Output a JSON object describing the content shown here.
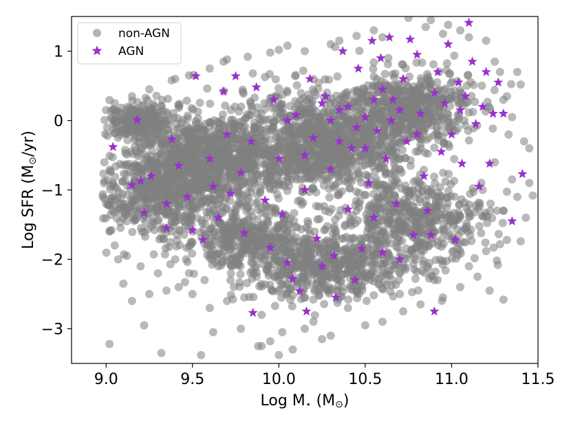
{
  "chart_data": {
    "type": "scatter",
    "title": "",
    "xlabel": {
      "main": "Log M",
      "sub": "⋆",
      "unit": "(M",
      "sun": "⊙",
      "close": ")"
    },
    "ylabel": {
      "main": "Log SFR  (M",
      "sun": "⊙",
      "unit": "/yr)"
    },
    "xlim": [
      8.8,
      11.5
    ],
    "ylim": [
      -3.5,
      1.5
    ],
    "xticks": [
      9.0,
      9.5,
      10.0,
      10.5,
      11.0,
      11.5
    ],
    "xtick_labels": [
      "9.0",
      "9.5",
      "10.0",
      "10.5",
      "11.0",
      "11.5"
    ],
    "yticks": [
      1,
      0,
      -1,
      -2,
      -3
    ],
    "ytick_labels": [
      "1",
      "0",
      "−1",
      "−2",
      "−3"
    ],
    "grid": false,
    "legend": {
      "position": "top-left"
    },
    "colors": {
      "non_agn": "#808080",
      "agn": "#9932cc"
    },
    "series": [
      {
        "name": "non-AGN",
        "marker": "circle",
        "description": "dense grey cloud of galaxies; sampled outline points",
        "points": [
          [
            9.02,
            -3.22
          ],
          [
            9.1,
            -2.35
          ],
          [
            9.22,
            -2.95
          ],
          [
            9.32,
            -3.35
          ],
          [
            9.42,
            -2.4
          ],
          [
            9.55,
            -3.38
          ],
          [
            9.62,
            -3.05
          ],
          [
            9.78,
            -3.0
          ],
          [
            9.88,
            -3.25
          ],
          [
            9.95,
            -3.18
          ],
          [
            10.02,
            -3.05
          ],
          [
            10.15,
            -3.0
          ],
          [
            10.3,
            -3.1
          ],
          [
            10.5,
            -2.95
          ],
          [
            10.6,
            -2.9
          ],
          [
            10.72,
            -2.75
          ],
          [
            10.82,
            -2.65
          ],
          [
            10.95,
            -2.55
          ],
          [
            11.05,
            -2.4
          ],
          [
            11.15,
            -2.25
          ],
          [
            11.22,
            -2.45
          ],
          [
            11.3,
            -2.58
          ],
          [
            11.2,
            -1.88
          ],
          [
            11.32,
            -1.72
          ],
          [
            11.4,
            -1.74
          ],
          [
            11.43,
            -1.4
          ],
          [
            11.38,
            -1.1
          ],
          [
            11.45,
            -0.4
          ],
          [
            11.42,
            -0.3
          ],
          [
            11.35,
            0.05
          ],
          [
            11.32,
            0.35
          ],
          [
            11.28,
            0.7
          ],
          [
            11.4,
            0.52
          ],
          [
            11.38,
            0.7
          ],
          [
            11.2,
            1.15
          ],
          [
            11.05,
            1.3
          ],
          [
            10.98,
            1.38
          ],
          [
            10.88,
            1.45
          ],
          [
            10.75,
            1.48
          ],
          [
            10.55,
            1.3
          ],
          [
            10.35,
            1.15
          ],
          [
            10.15,
            1.0
          ],
          [
            9.95,
            0.98
          ],
          [
            9.82,
            0.92
          ],
          [
            9.68,
            0.85
          ],
          [
            9.6,
            0.75
          ],
          [
            9.48,
            0.65
          ],
          [
            9.38,
            0.58
          ],
          [
            9.25,
            0.45
          ],
          [
            9.15,
            0.35
          ],
          [
            9.05,
            0.25
          ],
          [
            9.0,
            0.15
          ],
          [
            8.99,
            -0.6
          ],
          [
            9.0,
            -1.2
          ],
          [
            9.02,
            -1.6
          ],
          [
            9.05,
            -1.8
          ],
          [
            9.12,
            -1.95
          ],
          [
            9.2,
            -2.1
          ],
          [
            9.3,
            -2.2
          ],
          [
            9.4,
            -2.0
          ],
          [
            9.5,
            -2.5
          ],
          [
            9.6,
            -2.7
          ],
          [
            9.7,
            -2.6
          ],
          [
            10.08,
            -3.3
          ],
          [
            10.25,
            -3.15
          ],
          [
            11.47,
            -1.08
          ],
          [
            11.45,
            -0.9
          ],
          [
            11.35,
            -0.85
          ],
          [
            11.3,
            -1.3
          ],
          [
            11.1,
            -2.1
          ],
          [
            10.9,
            -2.3
          ],
          [
            10.7,
            -2.5
          ],
          [
            10.4,
            -2.7
          ],
          [
            10.2,
            -2.9
          ],
          [
            9.9,
            -2.8
          ],
          [
            9.8,
            -2.55
          ],
          [
            9.72,
            -2.3
          ],
          [
            9.65,
            -2.1
          ],
          [
            9.57,
            -2.3
          ],
          [
            9.48,
            -2.2
          ],
          [
            9.35,
            -2.45
          ],
          [
            9.25,
            -2.5
          ],
          [
            9.15,
            -2.6
          ],
          [
            9.07,
            -2.0
          ],
          [
            9.05,
            -0.95
          ],
          [
            9.12,
            -1.45
          ],
          [
            9.03,
            0.05
          ],
          [
            9.4,
            0.6
          ],
          [
            9.7,
            0.88
          ],
          [
            10.0,
            1.02
          ],
          [
            10.3,
            1.1
          ],
          [
            10.6,
            1.2
          ],
          [
            10.85,
            1.35
          ],
          [
            11.1,
            1.2
          ],
          [
            11.25,
            0.85
          ],
          [
            11.3,
            0.3
          ],
          [
            11.33,
            -0.2
          ],
          [
            11.25,
            -0.6
          ],
          [
            11.18,
            -1.0
          ],
          [
            10.95,
            1.25
          ],
          [
            10.45,
            1.22
          ],
          [
            10.05,
            1.08
          ],
          [
            9.9,
            -3.25
          ],
          [
            10.0,
            -3.38
          ]
        ],
        "dense_regions": [
          {
            "center": [
              9.55,
              -0.6
            ],
            "spread": [
              0.35,
              0.55
            ],
            "count": 900
          },
          {
            "center": [
              10.25,
              -0.35
            ],
            "spread": [
              0.45,
              0.6
            ],
            "count": 1200
          },
          {
            "center": [
              10.3,
              -2.1
            ],
            "spread": [
              0.45,
              0.4
            ],
            "count": 600
          },
          {
            "center": [
              10.75,
              0.2
            ],
            "spread": [
              0.3,
              0.45
            ],
            "count": 500
          },
          {
            "center": [
              9.3,
              -1.1
            ],
            "spread": [
              0.25,
              0.5
            ],
            "count": 400
          },
          {
            "center": [
              10.8,
              -1.4
            ],
            "spread": [
              0.35,
              0.45
            ],
            "count": 450
          },
          {
            "center": [
              9.8,
              -1.7
            ],
            "spread": [
              0.3,
              0.35
            ],
            "count": 350
          },
          {
            "center": [
              9.2,
              0.0
            ],
            "spread": [
              0.15,
              0.2
            ],
            "count": 250
          }
        ]
      },
      {
        "name": "AGN",
        "marker": "star",
        "description": "purple stars, densest near log M 10.2-10.8, log SFR ~0",
        "points": [
          [
            9.04,
            -0.38
          ],
          [
            9.15,
            -0.93
          ],
          [
            9.18,
            0.01
          ],
          [
            9.2,
            -0.87
          ],
          [
            9.22,
            -1.33
          ],
          [
            9.26,
            -0.8
          ],
          [
            9.35,
            -1.2
          ],
          [
            9.35,
            -1.55
          ],
          [
            9.38,
            -0.27
          ],
          [
            9.42,
            -0.65
          ],
          [
            9.47,
            -1.1
          ],
          [
            9.5,
            -1.58
          ],
          [
            9.52,
            0.64
          ],
          [
            9.56,
            -1.72
          ],
          [
            9.6,
            -0.55
          ],
          [
            9.62,
            -0.95
          ],
          [
            9.65,
            -1.4
          ],
          [
            9.68,
            0.42
          ],
          [
            9.7,
            -0.2
          ],
          [
            9.72,
            -1.05
          ],
          [
            9.75,
            0.64
          ],
          [
            9.78,
            -0.75
          ],
          [
            9.8,
            -1.62
          ],
          [
            9.84,
            -0.3
          ],
          [
            9.85,
            -2.77
          ],
          [
            9.87,
            0.48
          ],
          [
            9.92,
            -1.15
          ],
          [
            9.95,
            -1.83
          ],
          [
            9.97,
            0.3
          ],
          [
            10.0,
            -0.55
          ],
          [
            10.02,
            -1.35
          ],
          [
            10.05,
            -2.05
          ],
          [
            10.08,
            -2.28
          ],
          [
            10.1,
            0.08
          ],
          [
            10.12,
            -2.46
          ],
          [
            10.15,
            -1.0
          ],
          [
            10.16,
            -2.75
          ],
          [
            10.18,
            0.6
          ],
          [
            10.2,
            -0.25
          ],
          [
            10.22,
            -1.7
          ],
          [
            10.25,
            -2.1
          ],
          [
            10.27,
            0.35
          ],
          [
            10.3,
            -0.7
          ],
          [
            10.32,
            -1.95
          ],
          [
            10.33,
            -2.55
          ],
          [
            10.35,
            0.15
          ],
          [
            10.37,
            1.0
          ],
          [
            10.4,
            -1.28
          ],
          [
            10.42,
            -0.4
          ],
          [
            10.44,
            -2.3
          ],
          [
            10.46,
            0.75
          ],
          [
            10.48,
            -1.85
          ],
          [
            10.5,
            0.05
          ],
          [
            10.52,
            -0.9
          ],
          [
            10.54,
            1.15
          ],
          [
            10.55,
            -1.4
          ],
          [
            10.57,
            -0.15
          ],
          [
            10.59,
            0.9
          ],
          [
            10.6,
            -1.9
          ],
          [
            10.62,
            -0.55
          ],
          [
            10.64,
            1.2
          ],
          [
            10.66,
            0.3
          ],
          [
            10.68,
            -1.2
          ],
          [
            10.7,
            -2.0
          ],
          [
            10.72,
            0.6
          ],
          [
            10.74,
            -0.3
          ],
          [
            10.76,
            1.17
          ],
          [
            10.78,
            -1.65
          ],
          [
            10.8,
            0.95
          ],
          [
            10.82,
            0.1
          ],
          [
            10.84,
            -0.8
          ],
          [
            10.86,
            -1.3
          ],
          [
            10.88,
            -1.65
          ],
          [
            10.9,
            -2.75
          ],
          [
            10.92,
            0.7
          ],
          [
            10.94,
            -0.45
          ],
          [
            10.96,
            0.25
          ],
          [
            10.98,
            1.1
          ],
          [
            11.0,
            -0.2
          ],
          [
            11.02,
            -1.72
          ],
          [
            11.04,
            0.55
          ],
          [
            11.06,
            -0.62
          ],
          [
            11.08,
            0.35
          ],
          [
            11.1,
            1.41
          ],
          [
            11.12,
            0.85
          ],
          [
            11.14,
            -0.05
          ],
          [
            11.16,
            -0.95
          ],
          [
            11.18,
            0.2
          ],
          [
            11.2,
            0.7
          ],
          [
            11.22,
            -0.62
          ],
          [
            11.24,
            0.1
          ],
          [
            11.27,
            0.55
          ],
          [
            11.3,
            0.1
          ],
          [
            11.35,
            -1.45
          ],
          [
            11.41,
            -0.77
          ],
          [
            10.3,
            0.0
          ],
          [
            10.4,
            0.2
          ],
          [
            10.45,
            -0.1
          ],
          [
            10.55,
            0.3
          ],
          [
            10.65,
            0.0
          ],
          [
            10.35,
            -0.3
          ],
          [
            10.6,
            0.45
          ],
          [
            10.7,
            0.15
          ],
          [
            10.25,
            0.25
          ],
          [
            10.5,
            -0.4
          ],
          [
            10.15,
            -0.5
          ],
          [
            10.05,
            0.0
          ],
          [
            10.9,
            0.4
          ],
          [
            11.05,
            0.15
          ],
          [
            10.8,
            -0.2
          ]
        ]
      }
    ]
  }
}
